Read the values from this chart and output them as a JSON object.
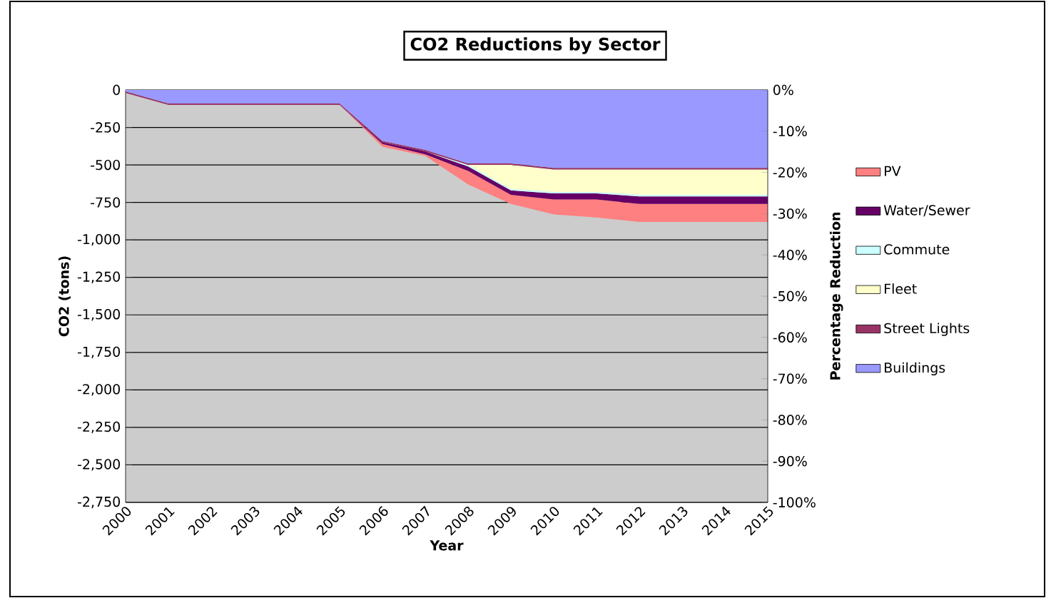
{
  "chart_data": {
    "type": "area",
    "title": "CO2 Reductions by Sector",
    "xlabel": "Year",
    "ylabel": "CO2 (tons)",
    "y2label": "Percentage Reduction",
    "categories": [
      "2000",
      "2001",
      "2002",
      "2003",
      "2004",
      "2005",
      "2006",
      "2007",
      "2008",
      "2009",
      "2010",
      "2011",
      "2012",
      "2013",
      "2014",
      "2015"
    ],
    "stacked": true,
    "grid": "y",
    "legend": "right",
    "series": [
      {
        "name": "Buildings",
        "color": "#9999ff",
        "values": [
          -10,
          -90,
          -90,
          -90,
          -90,
          -90,
          -340,
          -400,
          -490,
          -490,
          -520,
          -520,
          -520,
          -520,
          -520,
          -520
        ]
      },
      {
        "name": "Street Lights",
        "color": "#993366",
        "values": [
          -10,
          -10,
          -10,
          -10,
          -10,
          -10,
          -10,
          -10,
          -10,
          -10,
          -10,
          -10,
          -10,
          -10,
          -10,
          -10
        ]
      },
      {
        "name": "Fleet",
        "color": "#ffffcc",
        "values": [
          0,
          0,
          0,
          0,
          0,
          0,
          0,
          0,
          0,
          -160,
          -150,
          -150,
          -170,
          -170,
          -170,
          -170
        ]
      },
      {
        "name": "Commute",
        "color": "#ccffff",
        "values": [
          0,
          0,
          0,
          0,
          0,
          0,
          0,
          0,
          -10,
          -10,
          -10,
          -10,
          -10,
          -10,
          -10,
          -10
        ]
      },
      {
        "name": "Water/Sewer",
        "color": "#660066",
        "values": [
          0,
          0,
          0,
          0,
          0,
          0,
          -10,
          -20,
          -30,
          -30,
          -40,
          -40,
          -50,
          -50,
          -50,
          -50
        ]
      },
      {
        "name": "PV",
        "color": "#ff8080",
        "values": [
          0,
          0,
          0,
          0,
          0,
          0,
          -20,
          -10,
          -90,
          -60,
          -100,
          -120,
          -120,
          -120,
          -120,
          -120
        ]
      }
    ],
    "ylim": [
      -2750,
      0
    ],
    "yticks": [
      0,
      -250,
      -500,
      -750,
      {
        "value": -1000,
        "label": "-1,000"
      },
      {
        "value": -1250,
        "label": "-1,250"
      },
      {
        "value": -1500,
        "label": "-1,500"
      },
      {
        "value": -1750,
        "label": "-1,750"
      },
      {
        "value": -2000,
        "label": "-2,000"
      },
      {
        "value": -2250,
        "label": "-2,250"
      },
      {
        "value": -2500,
        "label": "-2,500"
      },
      {
        "value": -2750,
        "label": "-2,750"
      }
    ],
    "y2lim": [
      -100,
      0
    ],
    "y2ticks": [
      {
        "value": 0,
        "label": "0%"
      },
      {
        "value": -10,
        "label": "-10%"
      },
      {
        "value": -20,
        "label": "-20%"
      },
      {
        "value": -30,
        "label": "-30%"
      },
      {
        "value": -40,
        "label": "-40%"
      },
      {
        "value": -50,
        "label": "-50%"
      },
      {
        "value": -60,
        "label": "-60%"
      },
      {
        "value": -70,
        "label": "-70%"
      },
      {
        "value": -80,
        "label": "-80%"
      },
      {
        "value": -90,
        "label": "-90%"
      },
      {
        "value": -100,
        "label": "-100%"
      }
    ]
  }
}
